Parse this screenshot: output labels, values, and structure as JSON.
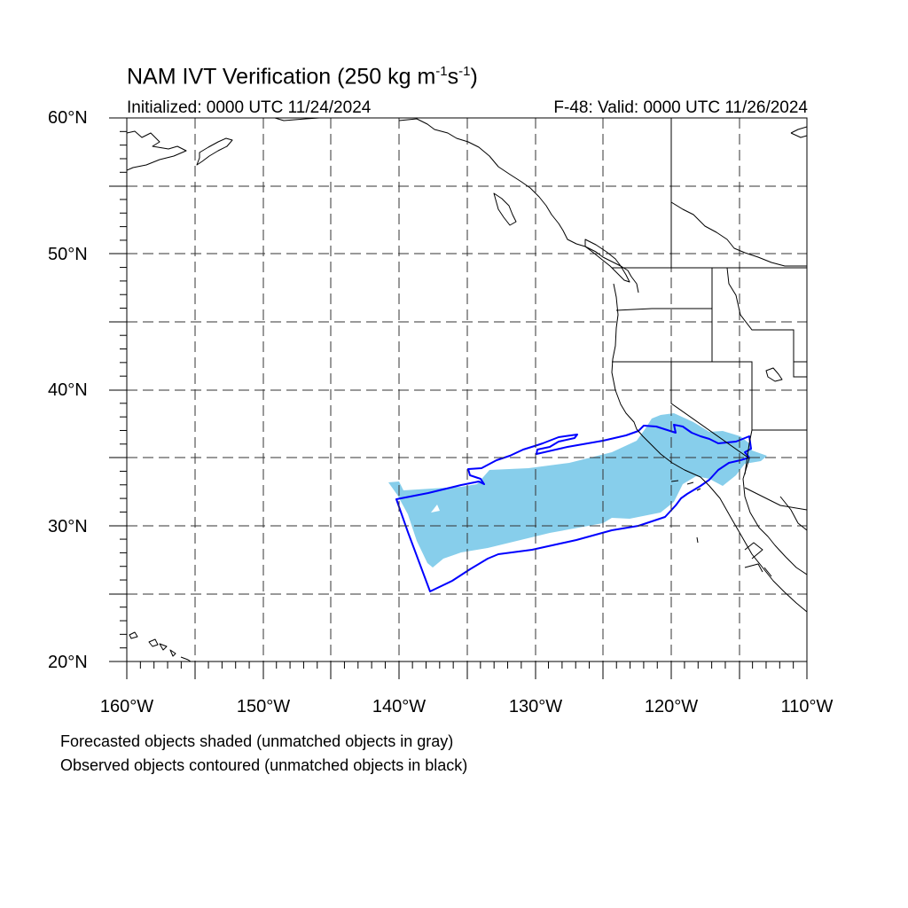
{
  "title": {
    "main": "NAM IVT Verification (250 kg m",
    "exp1": "-1",
    "mid": "s",
    "exp2": "-1",
    "close": ")"
  },
  "initialized": "Initialized: 0000 UTC 11/24/2024",
  "valid": "F-48: Valid: 0000 UTC 11/26/2024",
  "map": {
    "lon_range": [
      -160,
      -110
    ],
    "lat_range": [
      20,
      60
    ],
    "grid_dashed": true,
    "grid_lon_step": 5,
    "grid_lat_step": 5,
    "lat_labels": [
      {
        "lat": 60,
        "text": "60°N"
      },
      {
        "lat": 50,
        "text": "50°N"
      },
      {
        "lat": 40,
        "text": "40°N"
      },
      {
        "lat": 30,
        "text": "30°N"
      },
      {
        "lat": 20,
        "text": "20°N"
      }
    ],
    "lon_labels": [
      {
        "lon": -160,
        "text": "160°W"
      },
      {
        "lon": -150,
        "text": "150°W"
      },
      {
        "lon": -140,
        "text": "140°W"
      },
      {
        "lon": -130,
        "text": "130°W"
      },
      {
        "lon": -120,
        "text": "120°W"
      },
      {
        "lon": -110,
        "text": "110°W"
      }
    ],
    "forecast_color": "#87ceeb",
    "observed_color": "#0000ff",
    "coast_color": "#000000"
  },
  "notes": [
    "Forecasted objects shaded (unmatched objects in gray)",
    "Observed objects contoured (unmatched objects in black)"
  ]
}
